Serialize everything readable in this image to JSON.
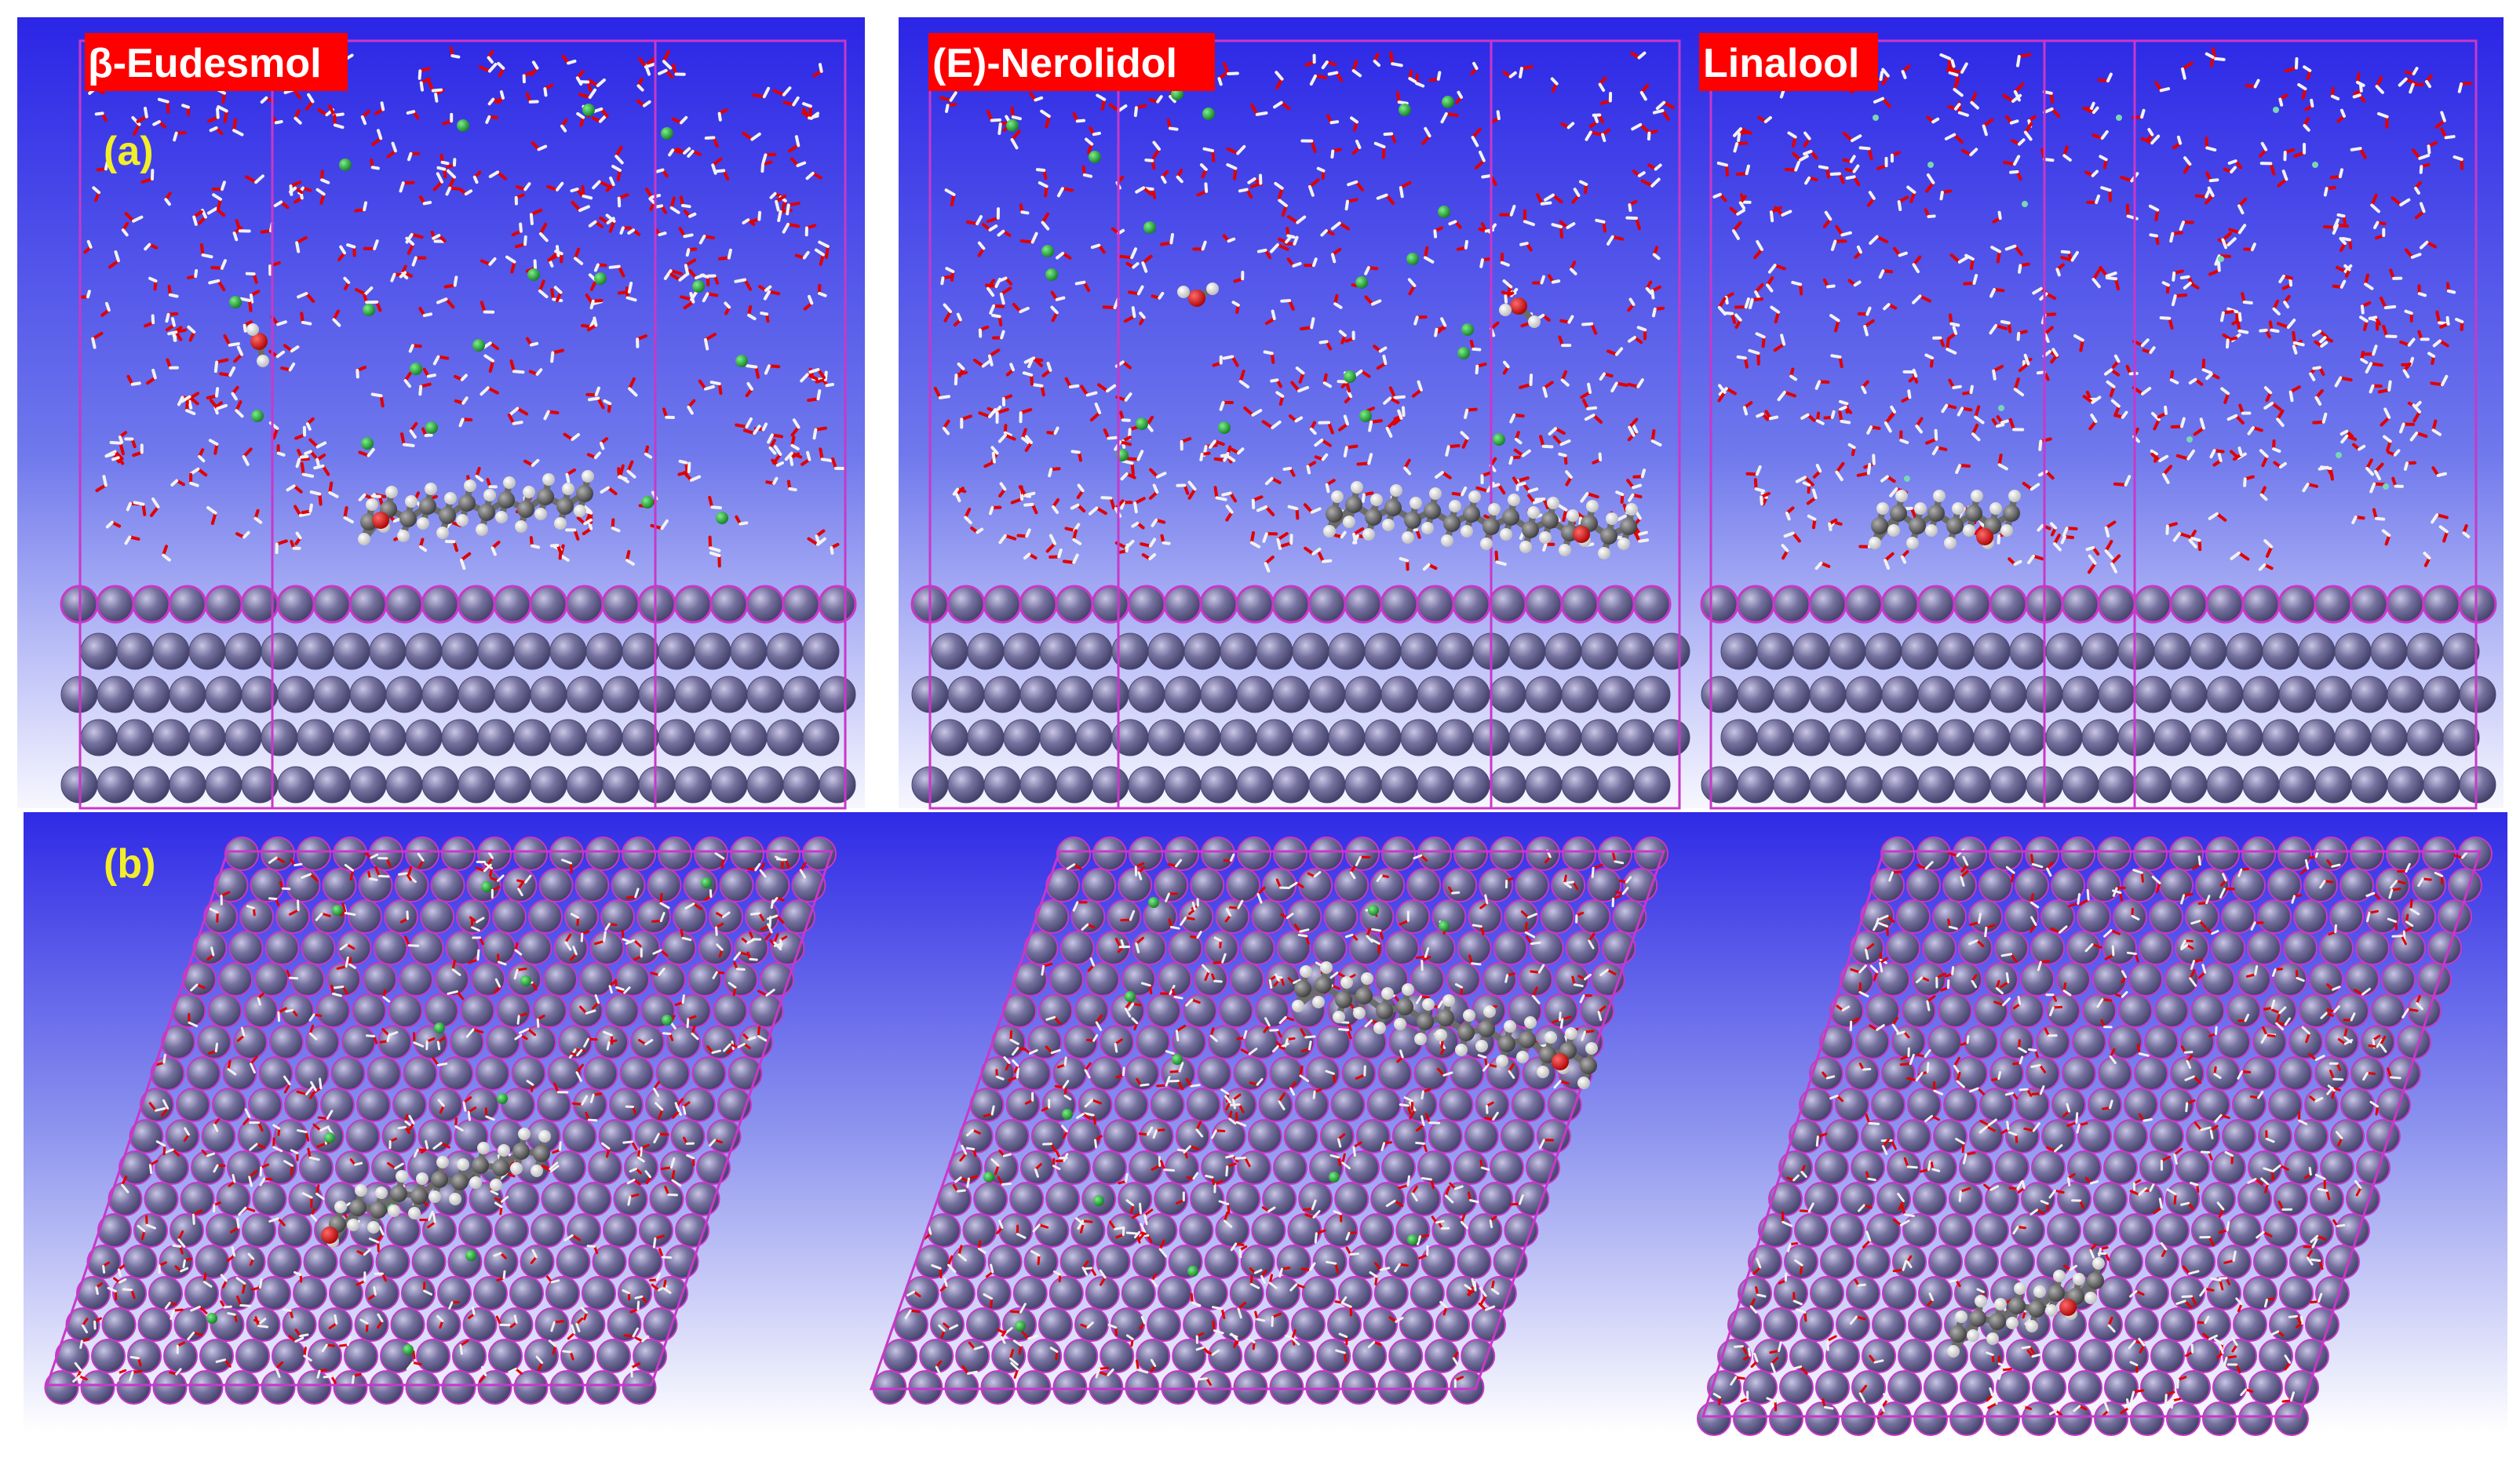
{
  "figure": {
    "panels": [
      {
        "letter": "(a)",
        "view": "side"
      },
      {
        "letter": "(b)",
        "view": "top"
      }
    ],
    "columns": [
      {
        "name": "β-Eudesmol"
      },
      {
        "name": "(E)-Nerolidol"
      },
      {
        "name": "Linalool"
      }
    ]
  },
  "colors": {
    "background_top": "#2b25e6",
    "background_mid": "#6f78ec",
    "background_bottom": "#ffffff",
    "label_box": "#ff0000",
    "label_text": "#ffffff",
    "panel_letter": "#f2ee2a",
    "surface_atom": "#6e6a9c",
    "surface_atom_edge": "#c838c8",
    "cell_boundary": "#c838c8",
    "oxygen": "#e00000",
    "hydrogen": "#f2f2f2",
    "carbon": "#555555",
    "chloride": "#27b83a",
    "linalool_ion": "#7ad6b4"
  }
}
